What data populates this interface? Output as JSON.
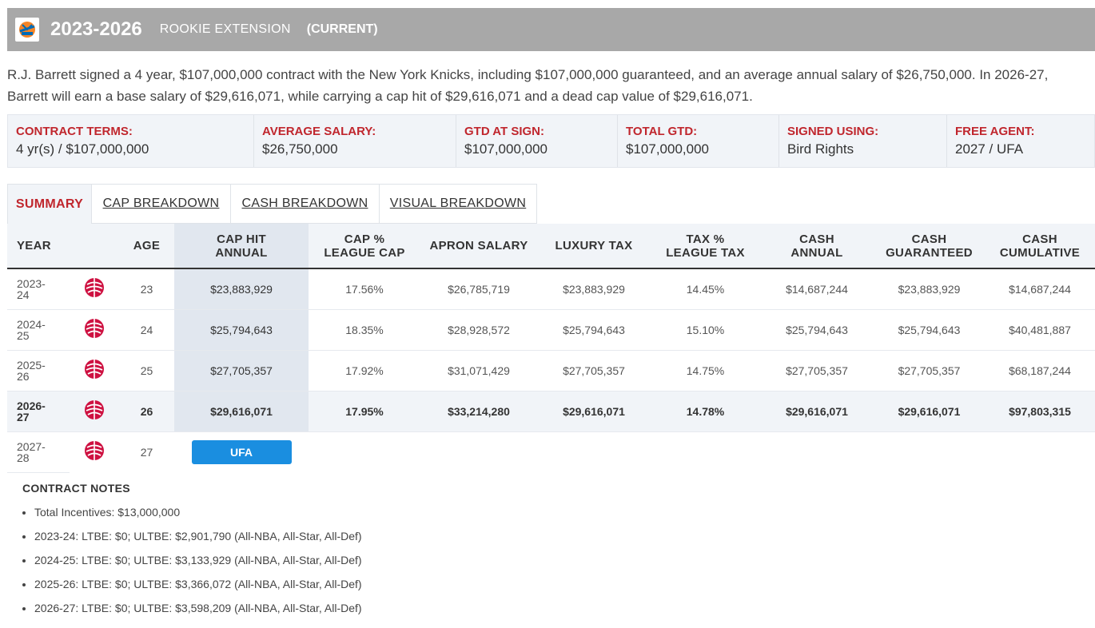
{
  "header": {
    "logo_icon": "knicks-logo-icon",
    "years": "2023-2026",
    "contract_type": "ROOKIE EXTENSION",
    "status": "(CURRENT)",
    "bg_color": "#a8a8a8"
  },
  "summary": "R.J. Barrett signed a 4 year, $107,000,000 contract with the New York Knicks, including $107,000,000 guaranteed, and an average annual salary of $26,750,000. In 2026-27, Barrett will earn a base salary of $29,616,071, while carrying a cap hit of $29,616,071 and a dead cap value of $29,616,071.",
  "terms": [
    {
      "label": "CONTRACT TERMS:",
      "value": "4 yr(s) / $107,000,000"
    },
    {
      "label": "AVERAGE SALARY:",
      "value": "$26,750,000"
    },
    {
      "label": "GTD AT SIGN:",
      "value": "$107,000,000"
    },
    {
      "label": "TOTAL GTD:",
      "value": "$107,000,000"
    },
    {
      "label": "SIGNED USING:",
      "value": "Bird Rights"
    },
    {
      "label": "FREE AGENT:",
      "value": "2027 / UFA"
    }
  ],
  "tabs": [
    {
      "label": "SUMMARY",
      "active": true
    },
    {
      "label": "CAP BREAKDOWN",
      "active": false
    },
    {
      "label": "CASH BREAKDOWN",
      "active": false
    },
    {
      "label": "VISUAL BREAKDOWN",
      "active": false
    }
  ],
  "table": {
    "headers": {
      "year": "YEAR",
      "age": "AGE",
      "cap_hit_1": "CAP HIT",
      "cap_hit_2": "ANNUAL",
      "cap_pct_1": "CAP %",
      "cap_pct_2": "LEAGUE CAP",
      "apron": "APRON SALARY",
      "lux": "LUXURY TAX",
      "tax_pct_1": "TAX %",
      "tax_pct_2": "LEAGUE TAX",
      "cash_1": "CASH",
      "cash_2": "ANNUAL",
      "gtd_1": "CASH",
      "gtd_2": "GUARANTEED",
      "cum_1": "CASH",
      "cum_2": "CUMULATIVE"
    },
    "rows": [
      {
        "year_1": "2023-",
        "year_2": "24",
        "team_icon": "raptors-logo-icon",
        "age": "23",
        "cap_hit": "$23,883,929",
        "cap_pct": "17.56%",
        "apron": "$26,785,719",
        "lux": "$23,883,929",
        "tax_pct": "14.45%",
        "cash": "$14,687,244",
        "gtd": "$23,883,929",
        "cum": "$14,687,244"
      },
      {
        "year_1": "2024-",
        "year_2": "25",
        "team_icon": "raptors-logo-icon",
        "age": "24",
        "cap_hit": "$25,794,643",
        "cap_pct": "18.35%",
        "apron": "$28,928,572",
        "lux": "$25,794,643",
        "tax_pct": "15.10%",
        "cash": "$25,794,643",
        "gtd": "$25,794,643",
        "cum": "$40,481,887"
      },
      {
        "year_1": "2025-",
        "year_2": "26",
        "team_icon": "raptors-logo-icon",
        "age": "25",
        "cap_hit": "$27,705,357",
        "cap_pct": "17.92%",
        "apron": "$31,071,429",
        "lux": "$27,705,357",
        "tax_pct": "14.75%",
        "cash": "$27,705,357",
        "gtd": "$27,705,357",
        "cum": "$68,187,244"
      },
      {
        "year_1": "2026-",
        "year_2": "27",
        "team_icon": "raptors-logo-icon",
        "age": "26",
        "cap_hit": "$29,616,071",
        "cap_pct": "17.95%",
        "apron": "$33,214,280",
        "lux": "$29,616,071",
        "tax_pct": "14.78%",
        "cash": "$29,616,071",
        "gtd": "$29,616,071",
        "cum": "$97,803,315"
      }
    ],
    "fa_row": {
      "year_1": "2027-",
      "year_2": "28",
      "team_icon": "raptors-logo-icon",
      "age": "27",
      "badge": "UFA"
    }
  },
  "notes": {
    "title": "CONTRACT NOTES",
    "items": [
      "Total Incentives: $13,000,000",
      "2023-24: LTBE: $0; ULTBE: $2,901,790 (All-NBA, All-Star, All-Def)",
      "2024-25: LTBE: $0; ULTBE: $3,133,929 (All-NBA, All-Star, All-Def)",
      "2025-26: LTBE: $0; ULTBE: $3,366,072 (All-NBA, All-Star, All-Def)",
      "2026-27: LTBE: $0; ULTBE: $3,598,209 (All-NBA, All-Star, All-Def)"
    ]
  },
  "colors": {
    "accent_red": "#c0262d",
    "ufa_blue": "#1a8ee0"
  }
}
